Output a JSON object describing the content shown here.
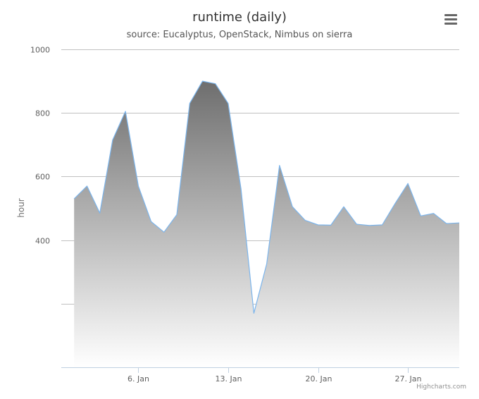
{
  "chart_data": {
    "type": "area",
    "title": "runtime (daily)",
    "subtitle": "source: Eucalyptus, OpenStack, Nimbus on sierra",
    "ylabel": "hour",
    "xlabel": "",
    "ylim": [
      0,
      1000
    ],
    "yticks": [
      {
        "value": 1000,
        "label": "1000"
      },
      {
        "value": 800,
        "label": "800"
      },
      {
        "value": 600,
        "label": "600"
      },
      {
        "value": 400,
        "label": "400"
      },
      {
        "value": 200,
        "label": ""
      },
      {
        "value": 0,
        "label": ""
      }
    ],
    "xlim": [
      "2014-12-31",
      "2015-01-31"
    ],
    "xticks": [
      {
        "date": "2015-01-06",
        "label": "6. Jan"
      },
      {
        "date": "2015-01-13",
        "label": "13. Jan"
      },
      {
        "date": "2015-01-20",
        "label": "20. Jan"
      },
      {
        "date": "2015-01-27",
        "label": "27. Jan"
      }
    ],
    "grid": true,
    "series": [
      {
        "color": "#7cb5ec",
        "points": [
          [
            "2015-01-01",
            530
          ],
          [
            "2015-01-02",
            570
          ],
          [
            "2015-01-03",
            485
          ],
          [
            "2015-01-04",
            715
          ],
          [
            "2015-01-05",
            805
          ],
          [
            "2015-01-06",
            570
          ],
          [
            "2015-01-07",
            458
          ],
          [
            "2015-01-08",
            425
          ],
          [
            "2015-01-09",
            480
          ],
          [
            "2015-01-10",
            830
          ],
          [
            "2015-01-11",
            900
          ],
          [
            "2015-01-12",
            892
          ],
          [
            "2015-01-13",
            830
          ],
          [
            "2015-01-14",
            560
          ],
          [
            "2015-01-15",
            170
          ],
          [
            "2015-01-16",
            325
          ],
          [
            "2015-01-17",
            635
          ],
          [
            "2015-01-18",
            505
          ],
          [
            "2015-01-19",
            462
          ],
          [
            "2015-01-20",
            448
          ],
          [
            "2015-01-21",
            447
          ],
          [
            "2015-01-22",
            505
          ],
          [
            "2015-01-23",
            450
          ],
          [
            "2015-01-24",
            446
          ],
          [
            "2015-01-25",
            448
          ],
          [
            "2015-01-26",
            515
          ],
          [
            "2015-01-27",
            578
          ],
          [
            "2015-01-28",
            476
          ],
          [
            "2015-01-29",
            484
          ],
          [
            "2015-01-30",
            452
          ],
          [
            "2015-01-31",
            454
          ]
        ]
      }
    ]
  },
  "credits": "Highcharts.com",
  "menu_icon": "hamburger-menu-icon"
}
